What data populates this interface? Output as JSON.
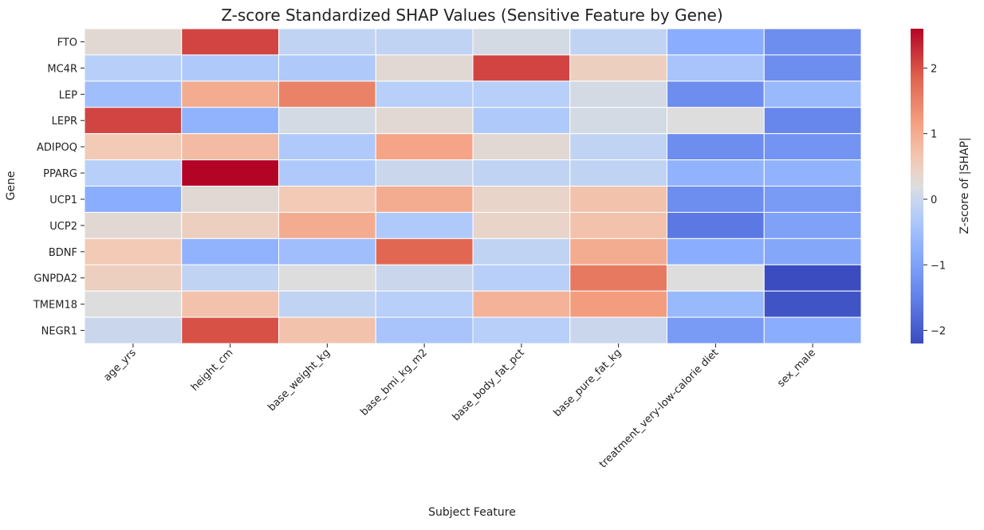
{
  "chart_data": {
    "type": "heatmap",
    "title": "Z-score Standardized SHAP Values (Sensitive Feature by Gene)",
    "xlabel": "Subject Feature",
    "ylabel": "Gene",
    "x_categories": [
      "age_yrs",
      "height_cm",
      "base_weight_kg",
      "base_bmi_kg_m2",
      "base_body_fat_pct",
      "base_pure_fat_kg",
      "treatment_very-low-calorie diet",
      "sex_male"
    ],
    "y_categories": [
      "FTO",
      "MC4R",
      "LEP",
      "LEPR",
      "ADIPOQ",
      "PPARG",
      "UCP1",
      "UCP2",
      "BDNF",
      "GNPDA2",
      "TMEM18",
      "NEGR1"
    ],
    "values": [
      [
        0.3,
        2.1,
        -0.1,
        -0.1,
        0.1,
        -0.1,
        -0.8,
        -1.3
      ],
      [
        -0.2,
        -0.3,
        -0.3,
        0.3,
        2.1,
        0.5,
        -0.4,
        -1.3
      ],
      [
        -0.5,
        1.0,
        1.5,
        -0.2,
        -0.2,
        0.1,
        -1.3,
        -0.6
      ],
      [
        2.1,
        -0.7,
        0.1,
        0.3,
        -0.3,
        0.1,
        0.2,
        -1.4
      ],
      [
        0.6,
        0.8,
        -0.3,
        1.1,
        0.3,
        -0.1,
        -1.3,
        -1.2
      ],
      [
        -0.2,
        2.6,
        -0.3,
        0.0,
        -0.1,
        -0.1,
        -0.7,
        -0.7
      ],
      [
        -0.8,
        0.3,
        0.6,
        1.0,
        0.4,
        0.7,
        -1.3,
        -1.1
      ],
      [
        0.3,
        0.5,
        1.0,
        -0.3,
        0.4,
        0.7,
        -1.6,
        -1.0
      ],
      [
        0.6,
        -0.7,
        -0.5,
        1.8,
        -0.1,
        1.0,
        -0.8,
        -0.9
      ],
      [
        0.5,
        -0.1,
        0.2,
        0.0,
        -0.2,
        1.6,
        0.2,
        -2.2
      ],
      [
        0.2,
        0.7,
        -0.1,
        -0.2,
        0.9,
        1.2,
        -0.6,
        -2.1
      ],
      [
        0.0,
        2.0,
        0.7,
        -0.4,
        -0.2,
        0.0,
        -1.1,
        -0.8
      ]
    ],
    "vmin": -2.2,
    "vmax": 2.6,
    "colormap": "coolwarm",
    "colorbar": {
      "label": "Z-score of |SHAP|",
      "ticks": [
        -2,
        -1,
        0,
        1,
        2
      ]
    },
    "cell_border_color": "#ffffff",
    "grid": false,
    "legend": "colorbar-right"
  }
}
